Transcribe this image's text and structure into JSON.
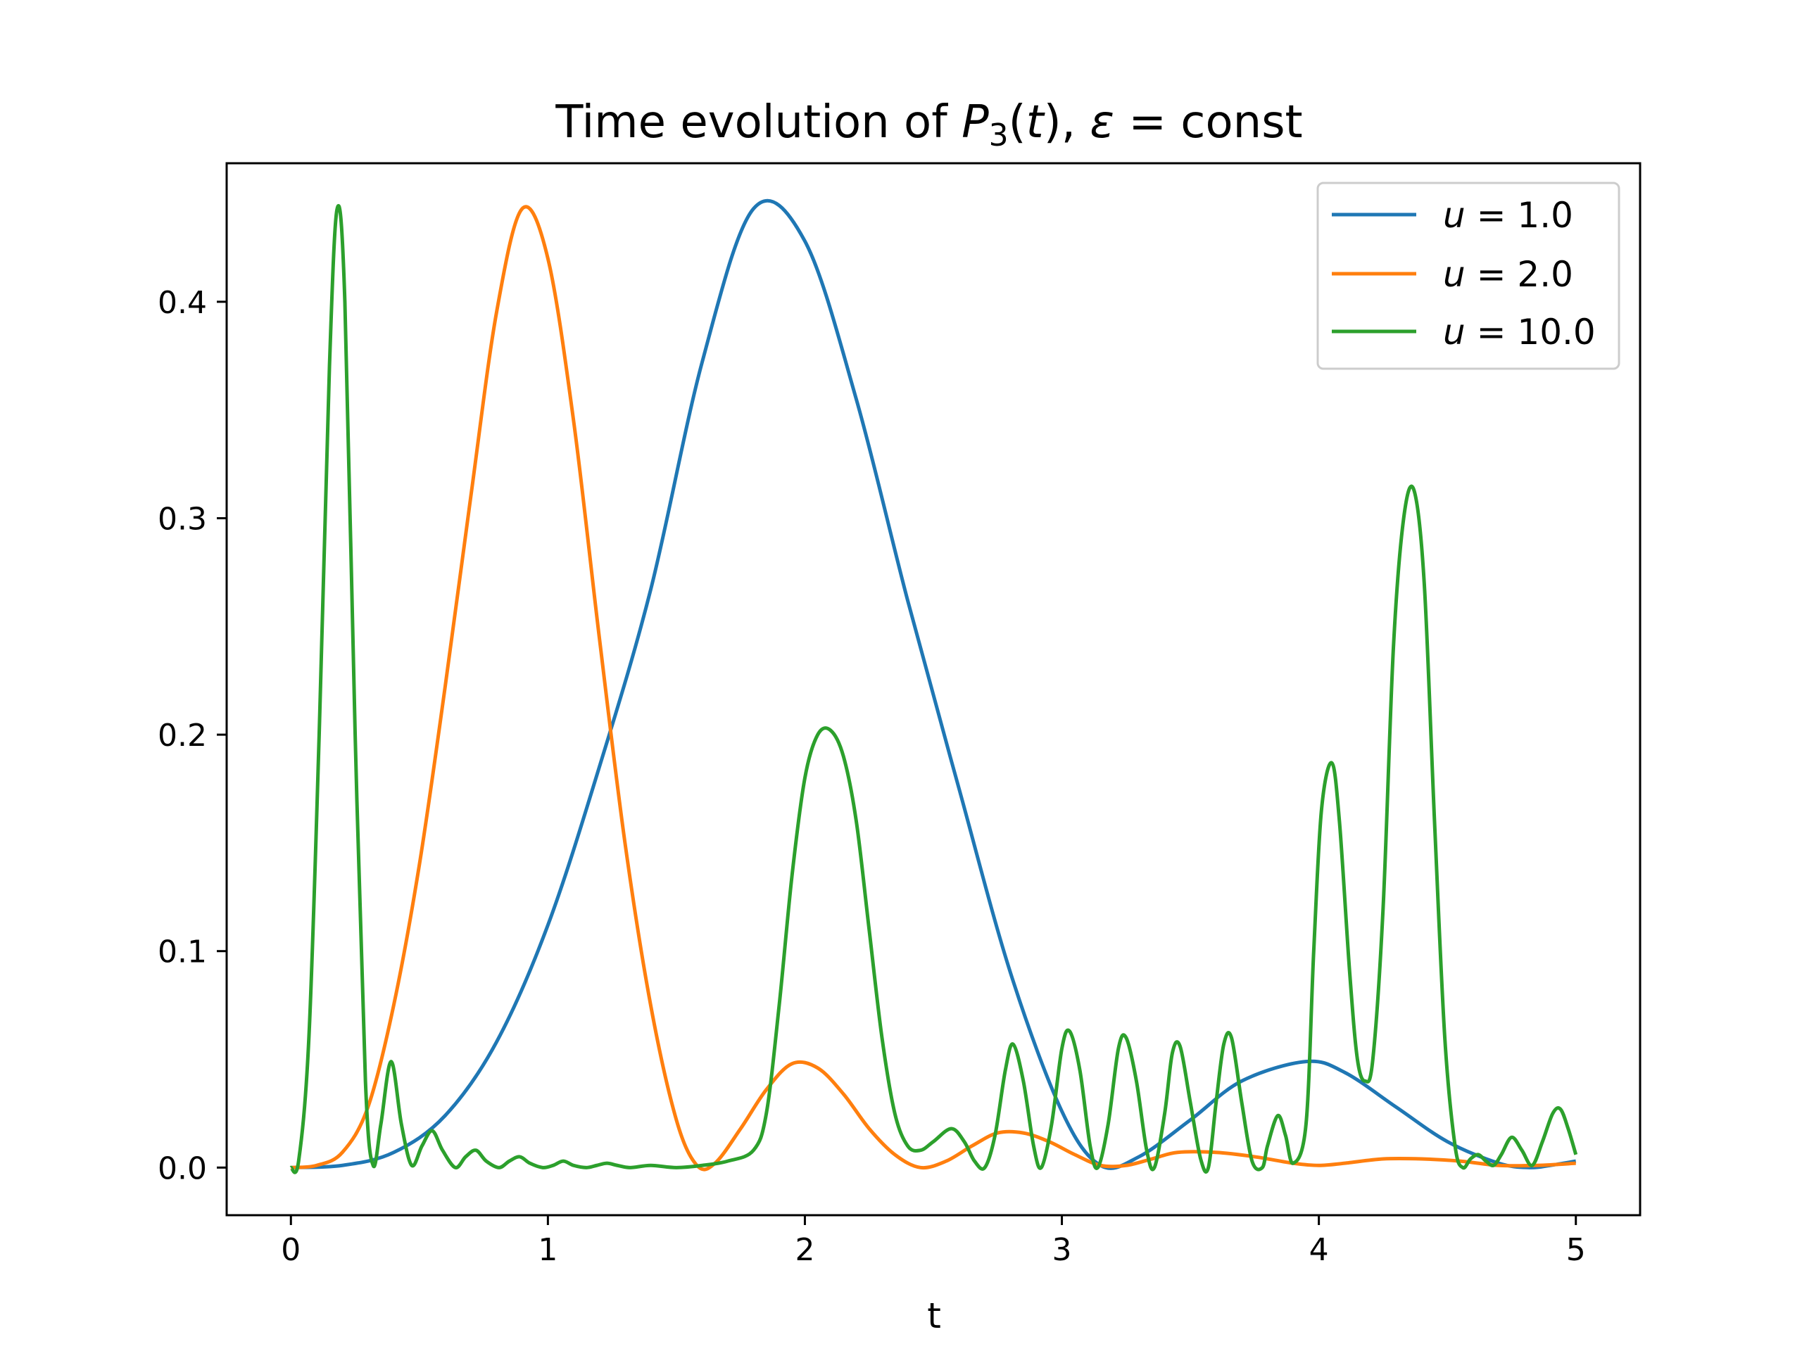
{
  "chart_data": {
    "type": "line",
    "title": "Time evolution of P₃(t), ε = const",
    "title_parts": {
      "prefix": "Time evolution of ",
      "p_symbol": "P",
      "p_sub": "3",
      "open": "(",
      "t_symbol": "t",
      "close_comma": "), ",
      "eps_symbol": "ε",
      "eq_const": " = const"
    },
    "xlabel": "t",
    "ylabel": "",
    "xlim": [
      -0.25,
      5.25
    ],
    "ylim": [
      -0.022,
      0.464
    ],
    "xticks": [
      0,
      1,
      2,
      3,
      4,
      5
    ],
    "xtick_labels": [
      "0",
      "1",
      "2",
      "3",
      "4",
      "5"
    ],
    "yticks": [
      0.0,
      0.1,
      0.2,
      0.3,
      0.4
    ],
    "ytick_labels": [
      "0.0",
      "0.1",
      "0.2",
      "0.3",
      "0.4"
    ],
    "grid": false,
    "legend_position": "top-right",
    "series": [
      {
        "name": "u = 1.0",
        "legend_var": "u",
        "legend_rest": " = 1.0",
        "color": "#1f77b4",
        "points": [
          [
            0,
            0
          ],
          [
            0.2,
            0.001
          ],
          [
            0.4,
            0.007
          ],
          [
            0.6,
            0.024
          ],
          [
            0.8,
            0.058
          ],
          [
            1.0,
            0.112
          ],
          [
            1.2,
            0.185
          ],
          [
            1.4,
            0.267
          ],
          [
            1.6,
            0.372
          ],
          [
            1.8,
            0.443
          ],
          [
            2.0,
            0.428
          ],
          [
            2.2,
            0.355
          ],
          [
            2.4,
            0.262
          ],
          [
            2.6,
            0.175
          ],
          [
            2.8,
            0.09
          ],
          [
            3.0,
            0.026
          ],
          [
            3.15,
            0.001
          ],
          [
            3.3,
            0.005
          ],
          [
            3.5,
            0.022
          ],
          [
            3.7,
            0.04
          ],
          [
            3.95,
            0.049
          ],
          [
            4.1,
            0.044
          ],
          [
            4.3,
            0.028
          ],
          [
            4.5,
            0.012
          ],
          [
            4.7,
            0.002
          ],
          [
            4.82,
            0
          ],
          [
            4.9,
            0.001
          ],
          [
            5.0,
            0.003
          ]
        ]
      },
      {
        "name": "u = 2.0",
        "legend_var": "u",
        "legend_rest": " = 2.0",
        "color": "#ff7f0e",
        "points": [
          [
            0,
            0
          ],
          [
            0.1,
            0.001
          ],
          [
            0.2,
            0.007
          ],
          [
            0.3,
            0.028
          ],
          [
            0.4,
            0.075
          ],
          [
            0.5,
            0.14
          ],
          [
            0.6,
            0.222
          ],
          [
            0.7,
            0.31
          ],
          [
            0.8,
            0.395
          ],
          [
            0.9,
            0.443
          ],
          [
            1.0,
            0.42
          ],
          [
            1.1,
            0.345
          ],
          [
            1.2,
            0.245
          ],
          [
            1.3,
            0.15
          ],
          [
            1.4,
            0.075
          ],
          [
            1.5,
            0.022
          ],
          [
            1.58,
            0.001
          ],
          [
            1.65,
            0.002
          ],
          [
            1.75,
            0.018
          ],
          [
            1.85,
            0.036
          ],
          [
            1.95,
            0.048
          ],
          [
            2.05,
            0.046
          ],
          [
            2.15,
            0.034
          ],
          [
            2.25,
            0.018
          ],
          [
            2.35,
            0.006
          ],
          [
            2.45,
            0
          ],
          [
            2.55,
            0.003
          ],
          [
            2.65,
            0.01
          ],
          [
            2.75,
            0.016
          ],
          [
            2.85,
            0.016
          ],
          [
            2.95,
            0.012
          ],
          [
            3.05,
            0.006
          ],
          [
            3.15,
            0.001
          ],
          [
            3.25,
            0.001
          ],
          [
            3.35,
            0.004
          ],
          [
            3.45,
            0.007
          ],
          [
            3.6,
            0.007
          ],
          [
            3.75,
            0.005
          ],
          [
            3.9,
            0.002
          ],
          [
            4.0,
            0.001
          ],
          [
            4.1,
            0.002
          ],
          [
            4.25,
            0.004
          ],
          [
            4.4,
            0.004
          ],
          [
            4.55,
            0.003
          ],
          [
            4.7,
            0.001
          ],
          [
            4.85,
            0.001
          ],
          [
            5.0,
            0.002
          ]
        ]
      },
      {
        "name": "u = 10.0",
        "legend_var": "u",
        "legend_rest": " = 10.0",
        "color": "#2ca02c",
        "points": [
          [
            0,
            0
          ],
          [
            0.03,
            0.003
          ],
          [
            0.07,
            0.06
          ],
          [
            0.11,
            0.2
          ],
          [
            0.15,
            0.37
          ],
          [
            0.18,
            0.443
          ],
          [
            0.21,
            0.4
          ],
          [
            0.25,
            0.2
          ],
          [
            0.29,
            0.04
          ],
          [
            0.32,
            0.001
          ],
          [
            0.35,
            0.02
          ],
          [
            0.39,
            0.049
          ],
          [
            0.43,
            0.02
          ],
          [
            0.47,
            0.001
          ],
          [
            0.51,
            0.01
          ],
          [
            0.55,
            0.017
          ],
          [
            0.59,
            0.008
          ],
          [
            0.64,
            0
          ],
          [
            0.68,
            0.005
          ],
          [
            0.72,
            0.008
          ],
          [
            0.76,
            0.003
          ],
          [
            0.81,
            0
          ],
          [
            0.85,
            0.003
          ],
          [
            0.89,
            0.005
          ],
          [
            0.93,
            0.002
          ],
          [
            0.98,
            0
          ],
          [
            1.02,
            0.001
          ],
          [
            1.06,
            0.003
          ],
          [
            1.1,
            0.001
          ],
          [
            1.15,
            0
          ],
          [
            1.19,
            0.001
          ],
          [
            1.23,
            0.002
          ],
          [
            1.27,
            0.001
          ],
          [
            1.32,
            0
          ],
          [
            1.4,
            0.001
          ],
          [
            1.5,
            0
          ],
          [
            1.6,
            0.001
          ],
          [
            1.7,
            0.003
          ],
          [
            1.8,
            0.008
          ],
          [
            1.85,
            0.025
          ],
          [
            1.9,
            0.075
          ],
          [
            1.95,
            0.135
          ],
          [
            2.0,
            0.18
          ],
          [
            2.05,
            0.2
          ],
          [
            2.1,
            0.202
          ],
          [
            2.15,
            0.19
          ],
          [
            2.2,
            0.16
          ],
          [
            2.25,
            0.11
          ],
          [
            2.3,
            0.06
          ],
          [
            2.35,
            0.025
          ],
          [
            2.4,
            0.01
          ],
          [
            2.45,
            0.008
          ],
          [
            2.5,
            0.012
          ],
          [
            2.57,
            0.018
          ],
          [
            2.62,
            0.012
          ],
          [
            2.66,
            0.003
          ],
          [
            2.7,
            0
          ],
          [
            2.74,
            0.015
          ],
          [
            2.78,
            0.045
          ],
          [
            2.81,
            0.057
          ],
          [
            2.85,
            0.04
          ],
          [
            2.89,
            0.01
          ],
          [
            2.92,
            0
          ],
          [
            2.96,
            0.02
          ],
          [
            3.0,
            0.055
          ],
          [
            3.03,
            0.063
          ],
          [
            3.07,
            0.045
          ],
          [
            3.11,
            0.01
          ],
          [
            3.14,
            0
          ],
          [
            3.18,
            0.02
          ],
          [
            3.22,
            0.055
          ],
          [
            3.25,
            0.06
          ],
          [
            3.29,
            0.04
          ],
          [
            3.33,
            0.008
          ],
          [
            3.36,
            0
          ],
          [
            3.4,
            0.025
          ],
          [
            3.43,
            0.053
          ],
          [
            3.46,
            0.056
          ],
          [
            3.5,
            0.03
          ],
          [
            3.54,
            0.004
          ],
          [
            3.57,
            0
          ],
          [
            3.6,
            0.03
          ],
          [
            3.63,
            0.057
          ],
          [
            3.66,
            0.06
          ],
          [
            3.7,
            0.03
          ],
          [
            3.74,
            0.003
          ],
          [
            3.78,
            0
          ],
          [
            3.8,
            0.01
          ],
          [
            3.84,
            0.024
          ],
          [
            3.87,
            0.015
          ],
          [
            3.9,
            0.002
          ],
          [
            3.95,
            0.02
          ],
          [
            3.98,
            0.1
          ],
          [
            4.01,
            0.165
          ],
          [
            4.05,
            0.187
          ],
          [
            4.08,
            0.16
          ],
          [
            4.12,
            0.09
          ],
          [
            4.15,
            0.05
          ],
          [
            4.18,
            0.04
          ],
          [
            4.21,
            0.05
          ],
          [
            4.25,
            0.12
          ],
          [
            4.29,
            0.24
          ],
          [
            4.33,
            0.3
          ],
          [
            4.37,
            0.313
          ],
          [
            4.41,
            0.27
          ],
          [
            4.45,
            0.16
          ],
          [
            4.49,
            0.06
          ],
          [
            4.53,
            0.01
          ],
          [
            4.56,
            0
          ],
          [
            4.59,
            0.004
          ],
          [
            4.62,
            0.006
          ],
          [
            4.65,
            0.003
          ],
          [
            4.68,
            0.001
          ],
          [
            4.71,
            0.006
          ],
          [
            4.75,
            0.014
          ],
          [
            4.79,
            0.008
          ],
          [
            4.83,
            0.001
          ],
          [
            4.87,
            0.012
          ],
          [
            4.91,
            0.025
          ],
          [
            4.94,
            0.027
          ],
          [
            4.97,
            0.018
          ],
          [
            5.0,
            0.006
          ]
        ]
      }
    ]
  }
}
